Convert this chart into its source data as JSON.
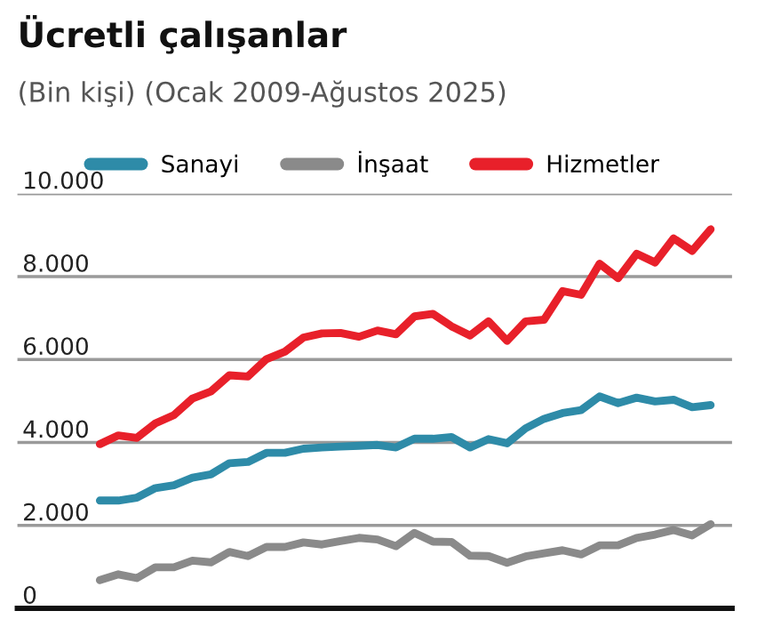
{
  "chart_data": {
    "type": "line",
    "title": "Ücretli çalışanlar",
    "subtitle": "(Bin kişi) (Ocak 2009-Ağustos 2025)",
    "categories": [
      null,
      null,
      null,
      null,
      null,
      null,
      null,
      null,
      null,
      null,
      null,
      null,
      null,
      null,
      null,
      null,
      null,
      null,
      null,
      null,
      null,
      null,
      null,
      null,
      null,
      null,
      null,
      null,
      null,
      null,
      null,
      null,
      null,
      null
    ],
    "ylim": [
      0,
      10000
    ],
    "yticks": [
      {
        "value": 0,
        "label": "0"
      },
      {
        "value": 2000,
        "label": "2.000"
      },
      {
        "value": 4000,
        "label": "4.000"
      },
      {
        "value": 6000,
        "label": "6.000"
      },
      {
        "value": 8000,
        "label": "8.000"
      },
      {
        "value": 10000,
        "label": "10.000"
      }
    ],
    "tick_labels": "y",
    "grid": "y",
    "legend": "top",
    "marker": "none",
    "line_style": "solid",
    "series": [
      {
        "name": "Sanayi",
        "color": "#2e8ba8",
        "values": [
          2600,
          2600,
          2670,
          2900,
          2970,
          3150,
          3230,
          3500,
          3530,
          3750,
          3750,
          3850,
          3880,
          3900,
          3920,
          3940,
          3880,
          4090,
          4090,
          4130,
          3880,
          4080,
          3980,
          4340,
          4570,
          4710,
          4780,
          5110,
          4950,
          5080,
          4990,
          5030,
          4850,
          4900
        ]
      },
      {
        "name": "İnşaat",
        "color": "#8a8a8a",
        "values": [
          680,
          820,
          730,
          990,
          990,
          1150,
          1110,
          1360,
          1260,
          1480,
          1480,
          1590,
          1540,
          1620,
          1700,
          1660,
          1500,
          1820,
          1610,
          1600,
          1270,
          1260,
          1100,
          1250,
          1330,
          1400,
          1300,
          1520,
          1520,
          1700,
          1780,
          1890,
          1760,
          2030
        ]
      },
      {
        "name": "Hizmetler",
        "color": "#e8202a",
        "values": [
          3960,
          4170,
          4110,
          4460,
          4660,
          5060,
          5230,
          5620,
          5590,
          6010,
          6190,
          6530,
          6630,
          6640,
          6550,
          6700,
          6610,
          7040,
          7100,
          6800,
          6580,
          6920,
          6450,
          6920,
          6960,
          7650,
          7560,
          8310,
          7960,
          8550,
          8340,
          8920,
          8620,
          9140
        ]
      }
    ]
  }
}
